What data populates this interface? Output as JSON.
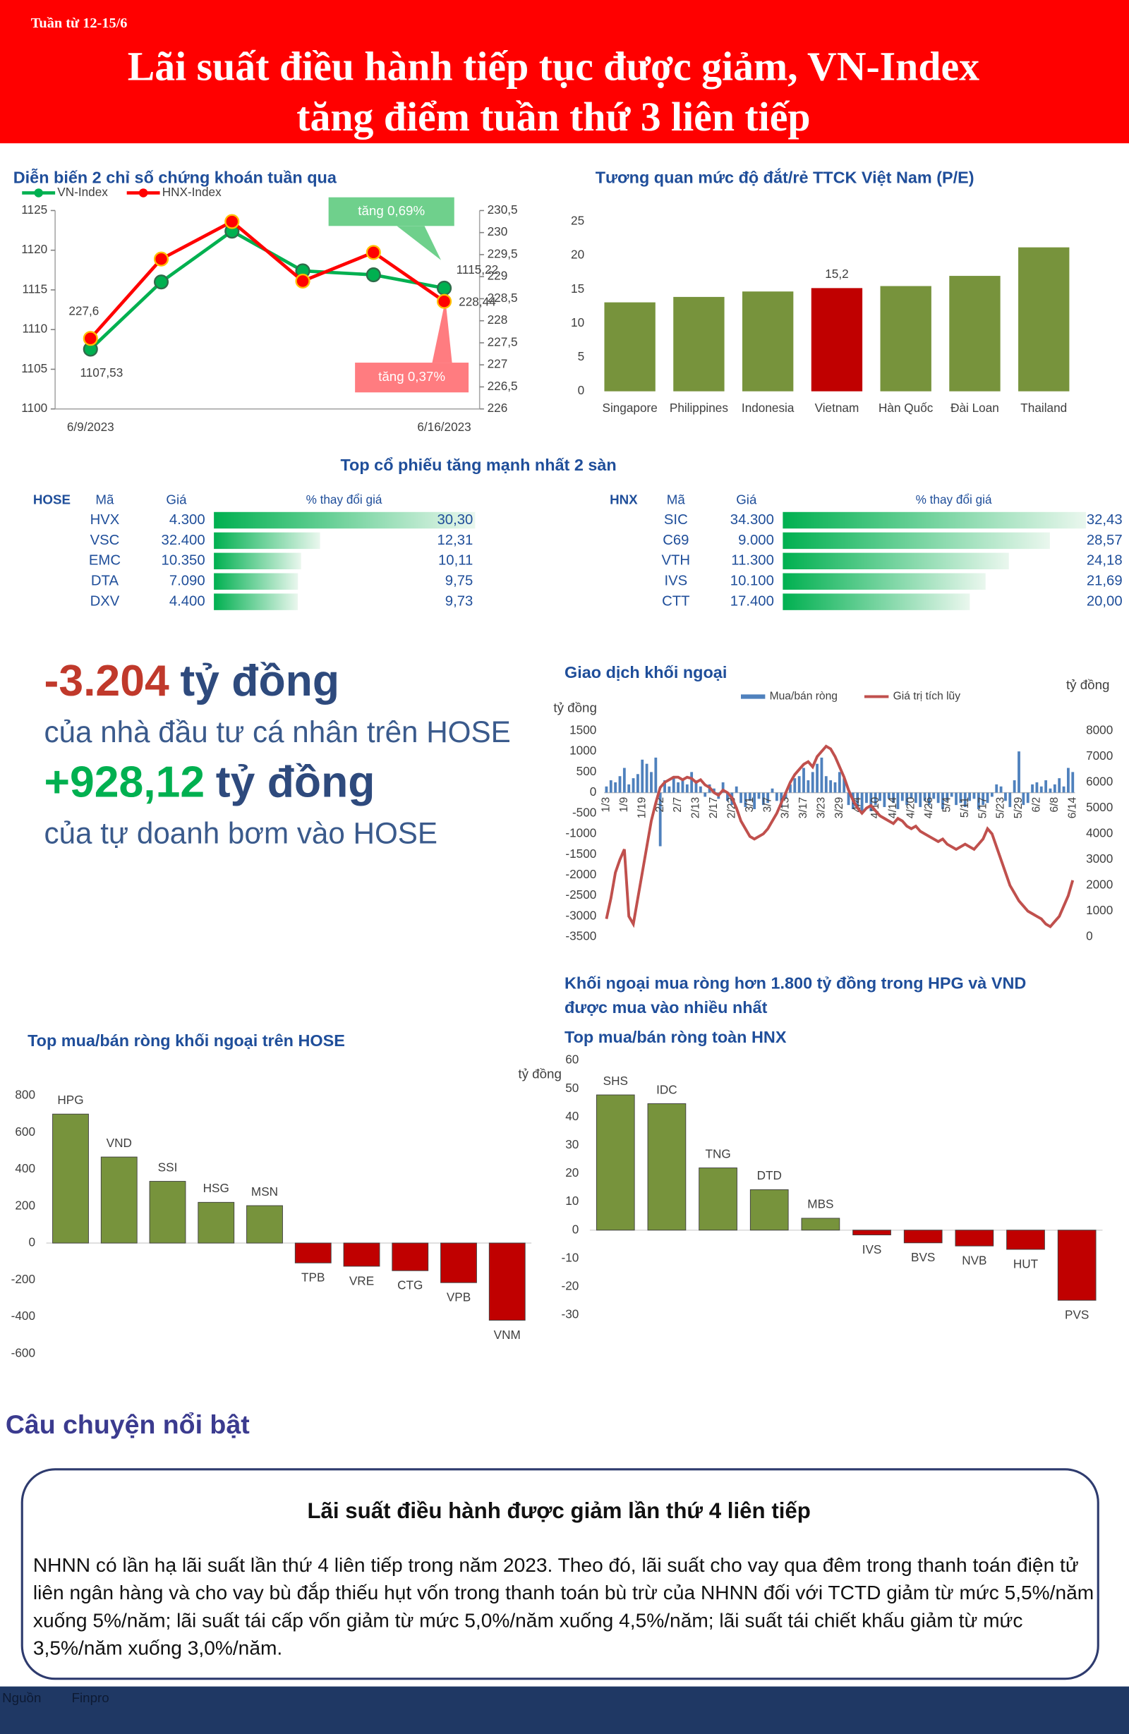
{
  "header": {
    "week": "Tuần từ 12-15/6",
    "title_lines": [
      "Lãi suất điều hành tiếp tục được giảm, VN-Index",
      "tăng điểm tuần thứ 3 liên tiếp"
    ]
  },
  "chart_data": [
    {
      "type": "line",
      "title": "Diễn biến 2 chỉ số chứng khoán tuần qua",
      "categories": [
        "6/9/2023",
        null,
        null,
        null,
        null,
        "6/16/2023"
      ],
      "series": [
        {
          "name": "VN-Index",
          "color": "#00b050",
          "values": [
            1107.53,
            1116,
            1122.4,
            1117.4,
            1116.9,
            1115.22
          ],
          "value_labels": [
            "1107,53",
            null,
            null,
            null,
            null,
            "1115,22"
          ]
        },
        {
          "name": "HNX-Index",
          "color": "#ff0000",
          "axis": "y2",
          "values": [
            227.6,
            229.4,
            230.25,
            228.9,
            229.55,
            228.44
          ],
          "value_labels": [
            "227,6",
            null,
            null,
            null,
            null,
            "228,44"
          ]
        }
      ],
      "ylim": [
        1100,
        1125
      ],
      "yticks": [
        1100,
        1105,
        1110,
        1115,
        1120,
        1125
      ],
      "y2lim": [
        226,
        230.5
      ],
      "y2ticks": [
        226,
        {
          "value": 226.5,
          "label": "226,5"
        },
        227,
        {
          "value": 227.5,
          "label": "227,5"
        },
        228,
        {
          "value": 228.5,
          "label": "228,5"
        },
        229,
        {
          "value": 229.5,
          "label": "229,5"
        },
        230,
        {
          "value": 230.5,
          "label": "230,5"
        }
      ],
      "legend": "top-left",
      "annotations": [
        {
          "text": "tăng 0,69%",
          "color": "#6fd08c"
        },
        {
          "text": "tăng 0,37%",
          "color": "#ff7c80"
        }
      ]
    },
    {
      "type": "bar",
      "title": "Tương quan mức độ đắt/rẻ TTCK Việt Nam (P/E)",
      "categories": [
        "Singapore",
        "Philippines",
        "Indonesia",
        "Vietnam",
        "Hàn Quốc",
        "Đài Loan",
        "Thailand"
      ],
      "values": [
        13.1,
        13.9,
        14.7,
        15.2,
        15.5,
        17,
        21.2
      ],
      "value_labels": [
        null,
        null,
        null,
        "15,2",
        null,
        null,
        null
      ],
      "colors": [
        "#77933c",
        "#77933c",
        "#77933c",
        "#c00000",
        "#77933c",
        "#77933c",
        "#77933c"
      ],
      "ylim": [
        0,
        25
      ],
      "yticks": [
        0,
        5,
        10,
        15,
        20,
        25
      ],
      "label_position": "axis"
    },
    {
      "type": "combo",
      "title": "Giao dịch khối ngoại",
      "y_label": "tỷ đồng",
      "y2_label": "tỷ đồng",
      "categories": [
        "1/3",
        null,
        null,
        null,
        "1/9",
        null,
        null,
        null,
        "1/19",
        null,
        null,
        null,
        "2/2",
        null,
        null,
        null,
        "2/7",
        null,
        null,
        null,
        "2/13",
        null,
        null,
        null,
        "2/17",
        null,
        null,
        null,
        "2/23",
        null,
        null,
        null,
        "3/1",
        null,
        null,
        null,
        "3/7",
        null,
        null,
        null,
        "3/13",
        null,
        null,
        null,
        "3/17",
        null,
        null,
        null,
        "3/23",
        null,
        null,
        null,
        "3/29",
        null,
        null,
        null,
        "4/4",
        null,
        null,
        null,
        "4/10",
        null,
        null,
        null,
        "4/14",
        null,
        null,
        null,
        "4/20",
        null,
        null,
        null,
        "4/26",
        null,
        null,
        null,
        "5/4",
        null,
        null,
        null,
        "5/11",
        null,
        null,
        null,
        "5/17",
        null,
        null,
        null,
        "5/23",
        null,
        null,
        null,
        "5/29",
        null,
        null,
        null,
        "6/2",
        null,
        null,
        null,
        "6/8",
        null,
        null,
        null,
        "6/14"
      ],
      "series": [
        {
          "name": "Mua/bán ròng",
          "type": "bar",
          "color": "#4f81bd",
          "values": [
            150,
            300,
            250,
            400,
            600,
            200,
            350,
            450,
            800,
            700,
            500,
            850,
            -1300,
            300,
            150,
            400,
            250,
            350,
            200,
            500,
            300,
            150,
            -100,
            200,
            100,
            -150,
            250,
            -200,
            -300,
            150,
            -250,
            -350,
            -200,
            -400,
            -150,
            -300,
            -250,
            100,
            -200,
            -350,
            -150,
            200,
            350,
            400,
            600,
            300,
            500,
            700,
            850,
            400,
            300,
            250,
            500,
            350,
            -300,
            -400,
            -350,
            -500,
            -250,
            -450,
            -300,
            -200,
            -350,
            -150,
            -250,
            -400,
            -200,
            -300,
            -150,
            -250,
            -350,
            -200,
            -300,
            -150,
            -250,
            -400,
            -200,
            -100,
            -300,
            -250,
            -350,
            -200,
            -150,
            -400,
            -300,
            -250,
            -100,
            200,
            150,
            -200,
            -350,
            300,
            1000,
            -300,
            -250,
            200,
            250,
            150,
            300,
            100,
            200,
            350,
            150,
            600,
            500
          ]
        },
        {
          "name": "Giá trị tích lũy",
          "type": "line",
          "axis": "y2",
          "color": "#c0504d",
          "values": [
            700,
            1500,
            2500,
            3000,
            3400,
            800,
            500,
            1500,
            2500,
            3500,
            4500,
            5200,
            5800,
            6000,
            6100,
            6200,
            6200,
            6100,
            6200,
            6150,
            6000,
            6100,
            5900,
            5800,
            5600,
            5500,
            5700,
            5600,
            5400,
            5000,
            4500,
            4200,
            3900,
            3800,
            3900,
            4000,
            4200,
            4500,
            4800,
            5200,
            5600,
            6000,
            6300,
            6500,
            6700,
            6800,
            6600,
            7000,
            7200,
            7400,
            7300,
            7000,
            6600,
            6200,
            5700,
            5300,
            5000,
            4800,
            5000,
            5100,
            4900,
            4700,
            4600,
            4500,
            4400,
            4600,
            4500,
            4300,
            4200,
            4300,
            4100,
            4000,
            3900,
            3800,
            3700,
            3800,
            3600,
            3500,
            3400,
            3500,
            3600,
            3500,
            3400,
            3600,
            3800,
            4200,
            4000,
            3500,
            3000,
            2500,
            2000,
            1700,
            1400,
            1200,
            1000,
            900,
            800,
            700,
            500,
            400,
            600,
            800,
            1200,
            1600,
            2200
          ]
        }
      ],
      "ylim": [
        -3500,
        1500
      ],
      "yticks": [
        -3500,
        -3000,
        -2500,
        -2000,
        -1500,
        -1000,
        -500,
        0,
        500,
        1000,
        1500
      ],
      "y2lim": [
        0,
        8000
      ],
      "y2ticks": [
        0,
        1000,
        2000,
        3000,
        4000,
        5000,
        6000,
        7000,
        8000
      ],
      "legend": "top"
    },
    {
      "type": "bar",
      "title": "Top mua/bán ròng khối ngoại trên HOSE",
      "y_label": "tỷ đồng",
      "categories": [
        "HPG",
        "VND",
        "SSI",
        "HSG",
        "MSN",
        "TPB",
        "VRE",
        "CTG",
        "VPB",
        "VNM"
      ],
      "values": [
        700,
        467,
        335,
        221,
        203,
        -108,
        -126,
        -150,
        -215,
        -419
      ],
      "positive_color": "#77933c",
      "negative_color": "#c00000",
      "ylim": [
        -600,
        800
      ],
      "yticks": [
        -600,
        -400,
        -200,
        0,
        200,
        400,
        600,
        800
      ],
      "label_position": "bar-end"
    },
    {
      "type": "bar",
      "title": "Top mua/bán ròng toàn HNX",
      "categories": [
        "SHS",
        "IDC",
        "TNG",
        "DTD",
        "MBS",
        "IVS",
        "BVS",
        "NVB",
        "HUT",
        "PVS"
      ],
      "values": [
        47.8,
        44.7,
        22,
        14.3,
        4.2,
        -1.7,
        -4.5,
        -5.6,
        -6.8,
        -24.8
      ],
      "positive_color": "#77933c",
      "negative_color": "#c00000",
      "ylim": [
        -30,
        60
      ],
      "yticks": [
        -30,
        -20,
        -10,
        0,
        10,
        20,
        30,
        40,
        50,
        60
      ],
      "label_position": "bar-end"
    }
  ],
  "top_gainers": {
    "title": "Top cổ phiếu tăng mạnh nhất 2 sàn",
    "bar_color": "#00b050",
    "tables": [
      {
        "exchange": "HOSE",
        "columns": [
          "Mã",
          "Giá",
          "% thay đổi giá"
        ],
        "codes": [
          "HVX",
          "VSC",
          "EMC",
          "DTA",
          "DXV"
        ],
        "prices": [
          "4.300",
          "32.400",
          "10.350",
          "7.090",
          "4.400"
        ],
        "change_values": [
          30.3,
          12.31,
          10.11,
          9.75,
          9.73
        ],
        "change_labels": [
          "30,30",
          "12,31",
          "10,11",
          "9,75",
          "9,73"
        ]
      },
      {
        "exchange": "HNX",
        "columns": [
          "Mã",
          "Giá",
          "% thay đổi giá"
        ],
        "codes": [
          "SIC",
          "C69",
          "VTH",
          "IVS",
          "CTT"
        ],
        "prices": [
          "34.300",
          "9.000",
          "11.300",
          "10.100",
          "17.400"
        ],
        "change_values": [
          32.43,
          28.57,
          24.18,
          21.69,
          20
        ],
        "change_labels": [
          "32,43",
          "28,57",
          "24,18",
          "21,69",
          "20,00"
        ]
      }
    ]
  },
  "highlights": [
    {
      "value": "-3.204",
      "value_color": "#c0392b",
      "unit": "tỷ đồng",
      "caption": "của nhà đầu tư cá nhân trên HOSE"
    },
    {
      "value": "+928,12",
      "value_color": "#00b050",
      "unit": "tỷ đồng",
      "caption": "của tự doanh bơm vào HOSE"
    }
  ],
  "foreign_headline": [
    "Khối ngoại mua ròng hơn 1.800 tỷ đồng trong HPG và VND",
    "được mua vào nhiều nhất"
  ],
  "story": {
    "section_title": "Câu chuyện nổi bật",
    "title": "Lãi suất điều hành được giảm lần thứ 4 liên tiếp",
    "body": "NHNN có lần hạ lãi suất lần thứ 4 liên tiếp trong năm 2023. Theo đó, lãi suất cho vay qua đêm trong thanh toán điện tử liên ngân hàng và cho vay bù đắp thiếu hụt vốn trong thanh toán bù trừ của NHNN đối với TCTD giảm từ mức 5,5%/năm xuống 5%/năm; lãi suất tái cấp vốn giảm từ mức 5,0%/năm xuống 4,5%/năm; lãi suất tái chiết khấu giảm từ mức 3,5%/năm xuống 3,0%/năm."
  },
  "footer": {
    "source_label": "Nguồn",
    "source": "Finpro"
  }
}
